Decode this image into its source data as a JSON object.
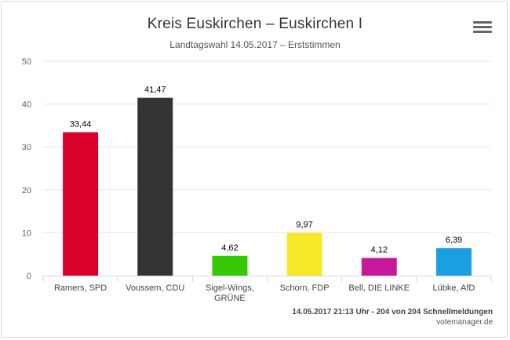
{
  "chart_data": {
    "type": "bar",
    "title": "Kreis Euskirchen – Euskirchen I",
    "subtitle": "Landtagswahl 14.05.2017 – Erststimmen",
    "categories": [
      [
        "Ramers, SPD"
      ],
      [
        "Voussem, CDU"
      ],
      [
        "Sigel-Wings,",
        "GRÜNE"
      ],
      [
        "Schorn, FDP"
      ],
      [
        "Bell, DIE LINKE"
      ],
      [
        "Lübke, AfD"
      ]
    ],
    "values": [
      33.44,
      41.47,
      4.62,
      9.97,
      4.12,
      6.39
    ],
    "value_labels": [
      "33,44",
      "41,47",
      "4,62",
      "9,97",
      "4,12",
      "6,39"
    ],
    "colors": [
      "#d9002a",
      "#333333",
      "#38c906",
      "#f7e92a",
      "#c8189a",
      "#1a9fe0"
    ],
    "ylim": [
      0,
      50
    ],
    "yticks": [
      0,
      10,
      20,
      30,
      40,
      50
    ],
    "grid": true
  },
  "footer": {
    "status": "14.05.2017 21:13 Uhr - 204 von 204 Schnellmeldungen",
    "source": "votemanager.de"
  },
  "menu": {
    "icon": "hamburger-menu-icon"
  }
}
